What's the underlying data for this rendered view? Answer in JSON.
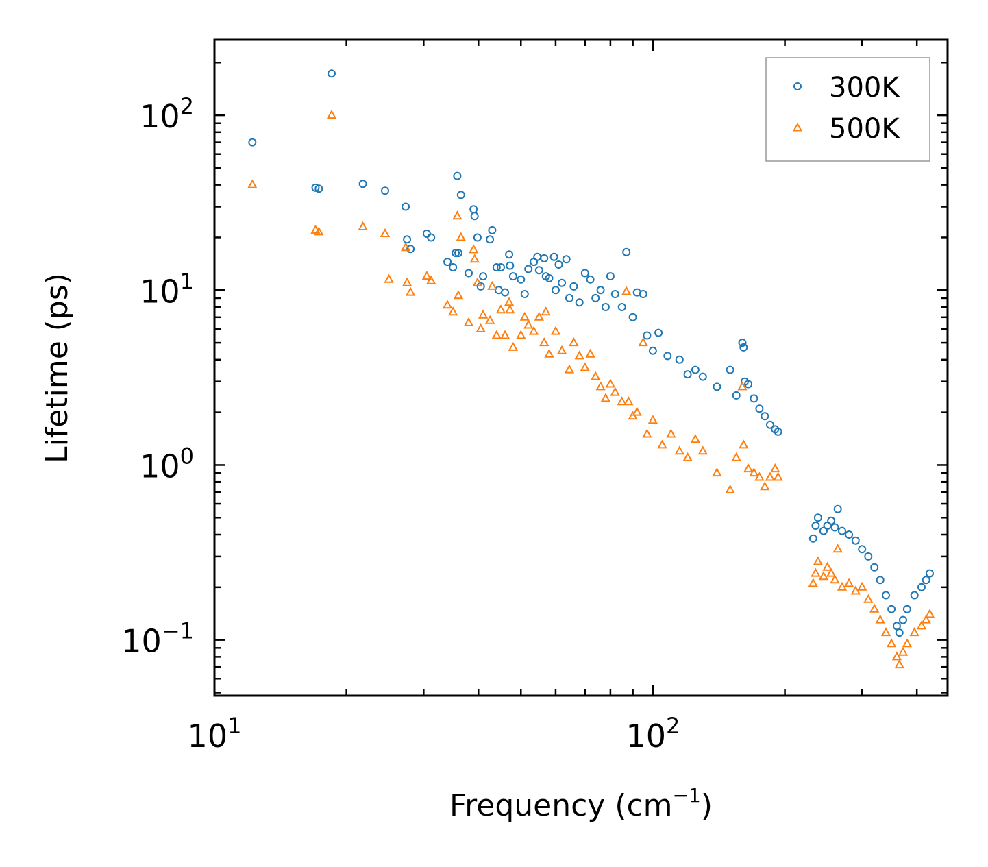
{
  "chart_data": {
    "type": "scatter",
    "title": "",
    "xscale": "log",
    "yscale": "log",
    "xlim": [
      10,
      470
    ],
    "ylim": [
      0.048,
      270
    ],
    "xlabel": {
      "main": "Frequency (cm",
      "sup": "−1",
      "close": ")"
    },
    "ylabel": "Lifetime (ps)",
    "x_ticks": [
      {
        "value": 10,
        "base": "10",
        "exp": "1"
      },
      {
        "value": 100,
        "base": "10",
        "exp": "2"
      }
    ],
    "y_ticks": [
      {
        "value": 0.1,
        "base": "10",
        "exp": "−1"
      },
      {
        "value": 1,
        "base": "10",
        "exp": "0"
      },
      {
        "value": 10,
        "base": "10",
        "exp": "1"
      },
      {
        "value": 100,
        "base": "10",
        "exp": "2"
      }
    ],
    "legend_position": "top-right",
    "series": [
      {
        "name": "300K",
        "marker": "circle",
        "color": "#1f77b4",
        "points": [
          [
            12.2,
            70
          ],
          [
            17.0,
            38.5
          ],
          [
            17.3,
            38
          ],
          [
            18.5,
            173
          ],
          [
            21.8,
            40.5
          ],
          [
            24.5,
            37
          ],
          [
            27.3,
            30
          ],
          [
            27.5,
            19.5
          ],
          [
            28.0,
            17.2
          ],
          [
            30.5,
            21
          ],
          [
            31.2,
            20
          ],
          [
            34.0,
            14.5
          ],
          [
            35.0,
            13.5
          ],
          [
            35.5,
            16.3
          ],
          [
            35.8,
            45
          ],
          [
            36.0,
            16.3
          ],
          [
            36.5,
            35
          ],
          [
            38.0,
            12.5
          ],
          [
            39.0,
            29
          ],
          [
            39.2,
            26.5
          ],
          [
            39.8,
            20
          ],
          [
            40.5,
            10.5
          ],
          [
            41.0,
            12
          ],
          [
            42.5,
            19.5
          ],
          [
            43.0,
            22
          ],
          [
            44.0,
            13.5
          ],
          [
            44.5,
            10
          ],
          [
            45.0,
            13.5
          ],
          [
            46.0,
            9.7
          ],
          [
            47.0,
            16
          ],
          [
            47.2,
            13.8
          ],
          [
            48.0,
            12
          ],
          [
            50.0,
            11.5
          ],
          [
            51.0,
            9.5
          ],
          [
            52.0,
            13.2
          ],
          [
            53.5,
            14.5
          ],
          [
            54.5,
            15.5
          ],
          [
            55.0,
            13
          ],
          [
            56.5,
            15.2
          ],
          [
            57.0,
            12
          ],
          [
            58.0,
            11.7
          ],
          [
            59.5,
            15.5
          ],
          [
            60.0,
            10
          ],
          [
            61.0,
            14
          ],
          [
            62.0,
            11
          ],
          [
            63.5,
            15
          ],
          [
            64.5,
            9
          ],
          [
            66.0,
            10.5
          ],
          [
            68.0,
            8.5
          ],
          [
            70.0,
            12.5
          ],
          [
            72.0,
            11.5
          ],
          [
            74.0,
            9
          ],
          [
            76.0,
            10
          ],
          [
            78.0,
            8
          ],
          [
            80.0,
            12
          ],
          [
            82.0,
            9.5
          ],
          [
            85.0,
            8
          ],
          [
            87.0,
            16.5
          ],
          [
            90.0,
            7
          ],
          [
            92.0,
            9.7
          ],
          [
            95.0,
            9.5
          ],
          [
            97.0,
            5.5
          ],
          [
            100.0,
            4.5
          ],
          [
            103.0,
            5.7
          ],
          [
            108.0,
            4.2
          ],
          [
            115.0,
            4
          ],
          [
            120.0,
            3.3
          ],
          [
            125.0,
            3.5
          ],
          [
            130.0,
            3.2
          ],
          [
            140.0,
            2.8
          ],
          [
            150.0,
            3.5
          ],
          [
            155.0,
            2.5
          ],
          [
            160.0,
            5.0
          ],
          [
            161.0,
            4.7
          ],
          [
            162.0,
            3.0
          ],
          [
            165.0,
            2.9
          ],
          [
            170.0,
            2.4
          ],
          [
            175.0,
            2.1
          ],
          [
            180.0,
            1.9
          ],
          [
            185.0,
            1.7
          ],
          [
            190.0,
            1.6
          ],
          [
            193.0,
            1.55
          ],
          [
            232.0,
            0.38
          ],
          [
            235.0,
            0.45
          ],
          [
            238.0,
            0.5
          ],
          [
            245.0,
            0.42
          ],
          [
            250.0,
            0.45
          ],
          [
            255.0,
            0.48
          ],
          [
            260.0,
            0.44
          ],
          [
            264.0,
            0.56
          ],
          [
            270.0,
            0.42
          ],
          [
            280.0,
            0.4
          ],
          [
            290.0,
            0.37
          ],
          [
            300.0,
            0.33
          ],
          [
            310.0,
            0.3
          ],
          [
            320.0,
            0.26
          ],
          [
            330.0,
            0.22
          ],
          [
            340.0,
            0.18
          ],
          [
            350.0,
            0.15
          ],
          [
            360.0,
            0.12
          ],
          [
            365.0,
            0.11
          ],
          [
            372.0,
            0.13
          ],
          [
            380.0,
            0.15
          ],
          [
            395.0,
            0.18
          ],
          [
            410.0,
            0.2
          ],
          [
            420.0,
            0.22
          ],
          [
            428.0,
            0.24
          ]
        ]
      },
      {
        "name": "500K",
        "marker": "triangle",
        "color": "#ff7f0e",
        "points": [
          [
            12.2,
            40
          ],
          [
            17.0,
            22
          ],
          [
            17.3,
            21.5
          ],
          [
            18.5,
            100
          ],
          [
            21.8,
            23
          ],
          [
            24.5,
            21
          ],
          [
            25.0,
            11.5
          ],
          [
            27.3,
            17.5
          ],
          [
            27.5,
            11
          ],
          [
            28.0,
            9.7
          ],
          [
            30.5,
            12
          ],
          [
            31.2,
            11.3
          ],
          [
            34.0,
            8.2
          ],
          [
            35.0,
            7.5
          ],
          [
            35.8,
            26.5
          ],
          [
            36.0,
            9.3
          ],
          [
            36.5,
            20
          ],
          [
            38.0,
            6.5
          ],
          [
            39.0,
            17
          ],
          [
            39.2,
            15
          ],
          [
            39.8,
            11
          ],
          [
            40.5,
            6.0
          ],
          [
            41.0,
            7.2
          ],
          [
            42.5,
            6.7
          ],
          [
            43.0,
            10.5
          ],
          [
            44.0,
            5.5
          ],
          [
            45.0,
            7.7
          ],
          [
            46.0,
            5.5
          ],
          [
            47.0,
            8.5
          ],
          [
            47.2,
            7.7
          ],
          [
            48.0,
            4.7
          ],
          [
            50.0,
            5.5
          ],
          [
            51.0,
            7
          ],
          [
            52.0,
            6.3
          ],
          [
            53.5,
            5.8
          ],
          [
            55.0,
            7
          ],
          [
            56.5,
            5
          ],
          [
            57.0,
            7.5
          ],
          [
            58.0,
            4.3
          ],
          [
            60.0,
            5.8
          ],
          [
            62.0,
            4.5
          ],
          [
            64.5,
            3.5
          ],
          [
            66.0,
            5
          ],
          [
            68.0,
            4.2
          ],
          [
            70.0,
            3.6
          ],
          [
            72.0,
            4.3
          ],
          [
            74.0,
            3.2
          ],
          [
            76.0,
            2.8
          ],
          [
            78.0,
            2.4
          ],
          [
            80.0,
            2.9
          ],
          [
            82.0,
            2.6
          ],
          [
            85.0,
            2.3
          ],
          [
            87.0,
            9.8
          ],
          [
            88.0,
            2.3
          ],
          [
            90.0,
            1.9
          ],
          [
            92.0,
            2.0
          ],
          [
            95.0,
            5.0
          ],
          [
            97.0,
            1.5
          ],
          [
            100.0,
            1.8
          ],
          [
            105.0,
            1.3
          ],
          [
            110.0,
            1.5
          ],
          [
            115.0,
            1.2
          ],
          [
            120.0,
            1.1
          ],
          [
            125.0,
            1.4
          ],
          [
            130.0,
            1.2
          ],
          [
            140.0,
            0.9
          ],
          [
            150.0,
            0.72
          ],
          [
            155.0,
            1.1
          ],
          [
            160.0,
            2.8
          ],
          [
            161.0,
            1.3
          ],
          [
            165.0,
            0.95
          ],
          [
            170.0,
            0.9
          ],
          [
            175.0,
            0.85
          ],
          [
            180.0,
            0.75
          ],
          [
            185.0,
            0.85
          ],
          [
            190.0,
            0.95
          ],
          [
            193.0,
            0.85
          ],
          [
            232.0,
            0.21
          ],
          [
            235.0,
            0.24
          ],
          [
            238.0,
            0.28
          ],
          [
            245.0,
            0.23
          ],
          [
            250.0,
            0.26
          ],
          [
            255.0,
            0.24
          ],
          [
            260.0,
            0.22
          ],
          [
            264.0,
            0.33
          ],
          [
            270.0,
            0.2
          ],
          [
            280.0,
            0.21
          ],
          [
            290.0,
            0.19
          ],
          [
            300.0,
            0.2
          ],
          [
            310.0,
            0.17
          ],
          [
            320.0,
            0.15
          ],
          [
            330.0,
            0.13
          ],
          [
            340.0,
            0.11
          ],
          [
            350.0,
            0.095
          ],
          [
            360.0,
            0.08
          ],
          [
            365.0,
            0.072
          ],
          [
            372.0,
            0.085
          ],
          [
            380.0,
            0.095
          ],
          [
            395.0,
            0.11
          ],
          [
            410.0,
            0.12
          ],
          [
            420.0,
            0.13
          ],
          [
            428.0,
            0.14
          ]
        ]
      }
    ]
  }
}
